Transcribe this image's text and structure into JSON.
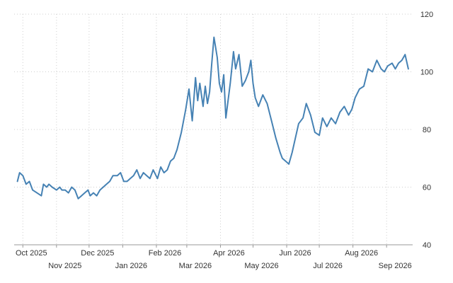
{
  "chart_data": {
    "type": "line",
    "title": "",
    "xlabel": "",
    "ylabel": "",
    "ylim": [
      40,
      120
    ],
    "xlim": [
      "2025-09-23",
      "2026-09-25"
    ],
    "grid": true,
    "y_axis_side": "right",
    "y_ticks": [
      40,
      60,
      80,
      100,
      120
    ],
    "x_ticks": [
      {
        "date": "2025-10-01",
        "label": "Oct 2025",
        "row": 1
      },
      {
        "date": "2025-11-01",
        "label": "Nov 2025",
        "row": 2
      },
      {
        "date": "2025-12-01",
        "label": "Dec 2025",
        "row": 1
      },
      {
        "date": "2026-01-01",
        "label": "Jan 2026",
        "row": 2
      },
      {
        "date": "2026-02-01",
        "label": "Feb 2026",
        "row": 1
      },
      {
        "date": "2026-03-01",
        "label": "Mar 2026",
        "row": 2
      },
      {
        "date": "2026-04-01",
        "label": "Apr 2026",
        "row": 1
      },
      {
        "date": "2026-05-01",
        "label": "May 2026",
        "row": 2
      },
      {
        "date": "2026-06-01",
        "label": "Jun 2026",
        "row": 1
      },
      {
        "date": "2026-07-01",
        "label": "Jul 2026",
        "row": 2
      },
      {
        "date": "2026-08-01",
        "label": "Aug 2026",
        "row": 1
      },
      {
        "date": "2026-09-01",
        "label": "Sep 2026",
        "row": 2
      }
    ],
    "colors": {
      "line": "#4682b4",
      "grid": "#cfcfcf",
      "text": "#333333"
    },
    "series": [
      {
        "x": [
          "2025-09-26",
          "2025-09-28",
          "2025-10-01",
          "2025-10-04",
          "2025-10-07",
          "2025-10-10",
          "2025-10-14",
          "2025-10-18",
          "2025-10-20",
          "2025-10-23",
          "2025-10-25",
          "2025-10-28",
          "2025-11-01",
          "2025-11-04",
          "2025-11-06",
          "2025-11-09",
          "2025-11-12",
          "2025-11-15",
          "2025-11-18",
          "2025-11-21",
          "2025-11-24",
          "2025-11-27",
          "2025-11-30",
          "2025-12-02",
          "2025-12-05",
          "2025-12-08",
          "2025-12-11",
          "2025-12-14",
          "2025-12-17",
          "2025-12-20",
          "2025-12-23",
          "2025-12-27",
          "2025-12-30",
          "2026-01-02",
          "2026-01-05",
          "2026-01-08",
          "2026-01-11",
          "2026-01-14",
          "2026-01-17",
          "2026-01-20",
          "2026-01-23",
          "2026-01-26",
          "2026-01-29",
          "2026-02-02",
          "2026-02-05",
          "2026-02-08",
          "2026-02-11",
          "2026-02-14",
          "2026-02-17",
          "2026-02-20",
          "2026-02-24",
          "2026-02-28",
          "2026-03-03",
          "2026-03-06",
          "2026-03-09",
          "2026-03-11",
          "2026-03-13",
          "2026-03-16",
          "2026-03-18",
          "2026-03-20",
          "2026-03-22",
          "2026-03-24",
          "2026-03-26",
          "2026-03-29",
          "2026-03-31",
          "2026-04-02",
          "2026-04-04",
          "2026-04-06",
          "2026-04-08",
          "2026-04-10",
          "2026-04-13",
          "2026-04-15",
          "2026-04-18",
          "2026-04-21",
          "2026-04-24",
          "2026-04-27",
          "2026-04-29",
          "2026-05-01",
          "2026-05-03",
          "2026-05-06",
          "2026-05-10",
          "2026-05-14",
          "2026-05-18",
          "2026-05-22",
          "2026-05-26",
          "2026-05-28",
          "2026-05-31",
          "2026-06-03",
          "2026-06-06",
          "2026-06-09",
          "2026-06-12",
          "2026-06-16",
          "2026-06-19",
          "2026-06-23",
          "2026-06-27",
          "2026-07-01",
          "2026-07-04",
          "2026-07-08",
          "2026-07-12",
          "2026-07-16",
          "2026-07-20",
          "2026-07-24",
          "2026-07-28",
          "2026-07-31",
          "2026-08-03",
          "2026-08-07",
          "2026-08-11",
          "2026-08-15",
          "2026-08-19",
          "2026-08-23",
          "2026-08-27",
          "2026-08-30",
          "2026-09-02",
          "2026-09-06",
          "2026-09-09",
          "2026-09-12",
          "2026-09-15",
          "2026-09-18",
          "2026-09-21"
        ],
        "y": [
          62,
          65,
          64,
          61,
          62,
          59,
          58,
          57,
          61,
          60,
          61,
          60,
          59,
          60,
          59,
          59,
          58,
          60,
          59,
          56,
          57,
          58,
          59,
          57,
          58,
          57,
          59,
          60,
          61,
          62,
          64,
          64,
          65,
          62,
          62,
          63,
          64,
          66,
          63,
          65,
          64,
          63,
          66,
          63,
          67,
          65,
          66,
          69,
          70,
          73,
          79,
          87,
          94,
          83,
          98,
          90,
          96,
          88,
          95,
          89,
          93,
          103,
          112,
          105,
          96,
          93,
          99,
          84,
          90,
          96,
          107,
          101,
          106,
          95,
          97,
          100,
          104,
          96,
          91,
          88,
          92,
          89,
          83,
          77,
          72,
          70,
          69,
          68,
          72,
          77,
          82,
          84,
          89,
          85,
          79,
          78,
          84,
          81,
          84,
          82,
          86,
          88,
          85,
          87,
          91,
          94,
          95,
          101,
          100,
          104,
          101,
          100,
          102,
          103,
          101,
          103,
          104,
          106,
          101
        ]
      }
    ]
  }
}
